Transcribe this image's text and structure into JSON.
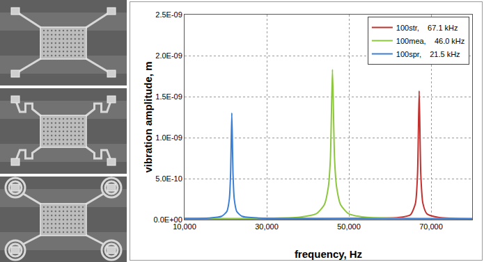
{
  "chart_data": {
    "type": "line",
    "x_label": "frequency, Hz",
    "y_label": "vibration amplitude, m",
    "xlim": [
      10000,
      80000
    ],
    "xticks": [
      {
        "value": 10000,
        "label": "10,000"
      },
      {
        "value": 30000,
        "label": "30,000"
      },
      {
        "value": 50000,
        "label": "50,000"
      },
      {
        "value": 70000,
        "label": "70,000"
      }
    ],
    "ylim": [
      0,
      2.5e-09
    ],
    "yticks": [
      {
        "value": 0,
        "label": "0.0E+00"
      },
      {
        "value": 5e-10,
        "label": "5.0E-10"
      },
      {
        "value": 1e-09,
        "label": "1.0E-09"
      },
      {
        "value": 1.5e-09,
        "label": "1.5E-09"
      },
      {
        "value": 2e-09,
        "label": "2.0E-09"
      },
      {
        "value": 2.5e-09,
        "label": "2.5E-09"
      }
    ],
    "grid": true,
    "legend": "top right",
    "series": [
      {
        "name": "100str,    67.1 kHz",
        "color": "#c0312f",
        "x": [
          10000,
          30000,
          55000,
          62000,
          65000,
          66200,
          66700,
          67100,
          67500,
          68000,
          69000,
          72000,
          80000
        ],
        "values": [
          1e-11,
          1e-11,
          1.5e-11,
          2.5e-11,
          6e-11,
          2e-10,
          5.5e-10,
          1.57e-09,
          5.5e-10,
          2e-10,
          7e-11,
          2.5e-11,
          1e-11
        ]
      },
      {
        "name": "100mea,    46.0 kHz",
        "color": "#8dc63f",
        "x": [
          10000,
          30000,
          38000,
          42000,
          44000,
          45000,
          45500,
          46000,
          46500,
          47000,
          48000,
          50000,
          54000,
          65000,
          80000
        ],
        "values": [
          1e-11,
          1.5e-11,
          3e-11,
          7e-11,
          1.8e-10,
          4e-10,
          7.5e-10,
          1.83e-09,
          7.5e-10,
          4e-10,
          1.8e-10,
          7e-11,
          3e-11,
          1.5e-11,
          1e-11
        ]
      },
      {
        "name": "100spr,    21.5 kHz",
        "color": "#3a7fd5",
        "x": [
          10000,
          16000,
          19000,
          20300,
          20900,
          21200,
          21500,
          21800,
          22100,
          22700,
          24000,
          28000,
          40000,
          60000,
          80000
        ],
        "values": [
          1.5e-11,
          2e-11,
          4e-11,
          1e-10,
          2.5e-10,
          5.5e-10,
          1.3e-09,
          5.5e-10,
          2.5e-10,
          1e-10,
          4e-11,
          2e-11,
          1.5e-11,
          1e-11,
          1e-11
        ]
      }
    ]
  }
}
